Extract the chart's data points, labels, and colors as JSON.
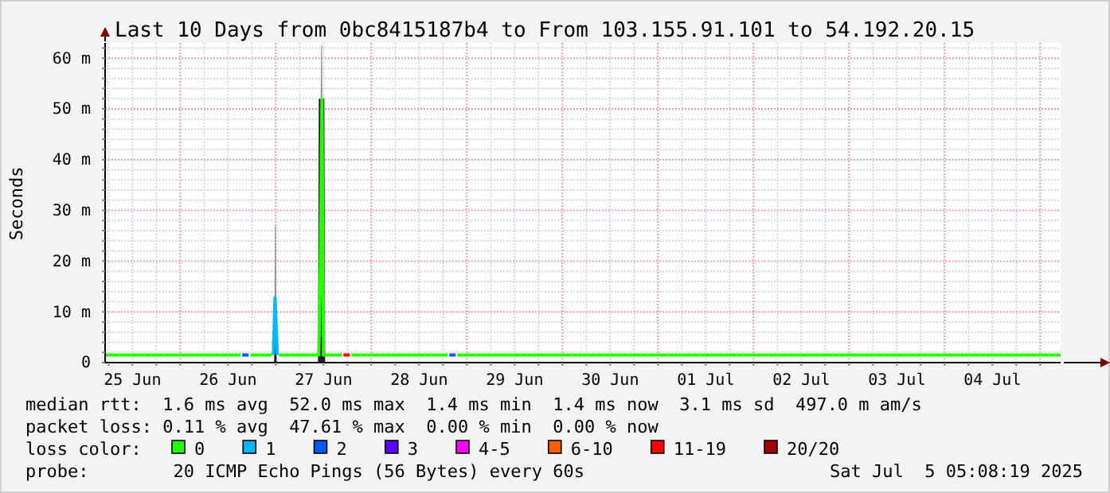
{
  "chart_data": {
    "type": "line",
    "title": "Last 10 Days from 0bc8415187b4 to From 103.155.91.101 to 54.192.20.15",
    "ylabel": "Seconds",
    "legend_title": "loss color:",
    "legend": "bottom",
    "grid": true,
    "xlim": [
      "2025-06-25T05:08",
      "2025-07-05T05:08"
    ],
    "xticks": [
      {
        "value": "2025-06-25T06:00",
        "label": null
      },
      {
        "value": "2025-06-25T12:00",
        "label": "25 Jun"
      },
      {
        "value": "2025-06-25T18:00",
        "label": null
      },
      {
        "value": "2025-06-26T00:00",
        "label": null
      },
      {
        "value": "2025-06-26T06:00",
        "label": null
      },
      {
        "value": "2025-06-26T12:00",
        "label": "26 Jun"
      },
      {
        "value": "2025-06-26T18:00",
        "label": null
      },
      {
        "value": "2025-06-27T00:00",
        "label": null
      },
      {
        "value": "2025-06-27T06:00",
        "label": null
      },
      {
        "value": "2025-06-27T12:00",
        "label": "27 Jun"
      },
      {
        "value": "2025-06-27T18:00",
        "label": null
      },
      {
        "value": "2025-06-28T00:00",
        "label": null
      },
      {
        "value": "2025-06-28T06:00",
        "label": null
      },
      {
        "value": "2025-06-28T12:00",
        "label": "28 Jun"
      },
      {
        "value": "2025-06-28T18:00",
        "label": null
      },
      {
        "value": "2025-06-29T00:00",
        "label": null
      },
      {
        "value": "2025-06-29T06:00",
        "label": null
      },
      {
        "value": "2025-06-29T12:00",
        "label": "29 Jun"
      },
      {
        "value": "2025-06-29T18:00",
        "label": null
      },
      {
        "value": "2025-06-30T00:00",
        "label": null
      },
      {
        "value": "2025-06-30T06:00",
        "label": null
      },
      {
        "value": "2025-06-30T12:00",
        "label": "30 Jun"
      },
      {
        "value": "2025-06-30T18:00",
        "label": null
      },
      {
        "value": "2025-07-01T00:00",
        "label": null
      },
      {
        "value": "2025-07-01T06:00",
        "label": null
      },
      {
        "value": "2025-07-01T12:00",
        "label": "01 Jul"
      },
      {
        "value": "2025-07-01T18:00",
        "label": null
      },
      {
        "value": "2025-07-02T00:00",
        "label": null
      },
      {
        "value": "2025-07-02T06:00",
        "label": null
      },
      {
        "value": "2025-07-02T12:00",
        "label": "02 Jul"
      },
      {
        "value": "2025-07-02T18:00",
        "label": null
      },
      {
        "value": "2025-07-03T00:00",
        "label": null
      },
      {
        "value": "2025-07-03T06:00",
        "label": null
      },
      {
        "value": "2025-07-03T12:00",
        "label": "03 Jul"
      },
      {
        "value": "2025-07-03T18:00",
        "label": null
      },
      {
        "value": "2025-07-04T00:00",
        "label": null
      },
      {
        "value": "2025-07-04T06:00",
        "label": null
      },
      {
        "value": "2025-07-04T12:00",
        "label": "04 Jul"
      },
      {
        "value": "2025-07-04T18:00",
        "label": null
      },
      {
        "value": "2025-07-05T00:00",
        "label": null
      }
    ],
    "ylim": [
      0,
      63
    ],
    "yticks": [
      0,
      {
        "value": 2,
        "label": null
      },
      {
        "value": 4,
        "label": null
      },
      {
        "value": 6,
        "label": null
      },
      {
        "value": 8,
        "label": null
      },
      {
        "value": 10,
        "label": "10 m"
      },
      {
        "value": 12,
        "label": null
      },
      {
        "value": 14,
        "label": null
      },
      {
        "value": 16,
        "label": null
      },
      {
        "value": 18,
        "label": null
      },
      {
        "value": 20,
        "label": "20 m"
      },
      {
        "value": 22,
        "label": null
      },
      {
        "value": 24,
        "label": null
      },
      {
        "value": 26,
        "label": null
      },
      {
        "value": 28,
        "label": null
      },
      {
        "value": 30,
        "label": "30 m"
      },
      {
        "value": 32,
        "label": null
      },
      {
        "value": 34,
        "label": null
      },
      {
        "value": 36,
        "label": null
      },
      {
        "value": 38,
        "label": null
      },
      {
        "value": 40,
        "label": "40 m"
      },
      {
        "value": 42,
        "label": null
      },
      {
        "value": 44,
        "label": null
      },
      {
        "value": 46,
        "label": null
      },
      {
        "value": 48,
        "label": null
      },
      {
        "value": 50,
        "label": "50 m"
      },
      {
        "value": 52,
        "label": null
      },
      {
        "value": 54,
        "label": null
      },
      {
        "value": 56,
        "label": null
      },
      {
        "value": 58,
        "label": null
      },
      {
        "value": 60,
        "label": "60 m"
      },
      {
        "value": 62,
        "label": null
      }
    ],
    "series": [
      {
        "type": "area",
        "color": "#8c8c8c",
        "x": [
          "2025-06-25T05:08",
          "2025-06-26T23:36",
          "2025-06-26T23:48",
          "2025-06-27T00:00",
          "2025-06-27T00:12",
          "2025-06-27T10:48",
          "2025-06-27T11:00",
          "2025-06-27T11:24",
          "2025-06-27T11:36",
          "2025-06-27T12:00",
          "2025-07-05T05:08"
        ],
        "values": [
          0,
          0,
          27,
          27,
          0,
          0,
          27,
          62.5,
          62.5,
          0,
          0
        ]
      },
      {
        "type": "area",
        "color": "#222222",
        "x": [
          "2025-06-25T05:08",
          "2025-06-26T23:36",
          "2025-06-26T23:48",
          "2025-06-27T00:00",
          "2025-06-27T00:12",
          "2025-06-27T10:36",
          "2025-06-27T10:48",
          "2025-06-27T12:12",
          "2025-06-27T12:24",
          "2025-07-05T05:08"
        ],
        "values": [
          0,
          0,
          13,
          13,
          0,
          0,
          52,
          52,
          0,
          0
        ]
      },
      {
        "name": "0",
        "color": "#26ff00",
        "x": [
          "2025-06-25T05:08",
          "2025-06-26T15:12",
          "2025-06-26T16:00",
          "2025-06-26T17:36",
          "2025-06-26T23:00",
          "2025-06-26T23:36",
          "2025-06-27T00:48",
          "2025-06-27T10:48",
          "2025-06-27T11:12",
          "2025-06-27T11:36",
          "2025-06-27T12:00",
          "2025-06-27T16:36",
          "2025-06-27T17:36",
          "2025-06-27T19:00",
          "2025-06-28T19:12",
          "2025-06-28T20:00",
          "2025-06-28T21:36",
          "2025-07-05T05:08"
        ],
        "values": [
          1.5,
          1.5,
          null,
          1.5,
          1.5,
          null,
          1.5,
          1.5,
          18,
          52,
          1.5,
          1.5,
          null,
          1.5,
          1.5,
          null,
          1.5,
          1.5
        ]
      },
      {
        "name": "1",
        "color": "#00b8ff",
        "x": [
          "2025-06-26T23:24",
          "2025-06-26T23:48",
          "2025-06-27T00:24"
        ],
        "values": [
          1.5,
          12.8,
          1.5
        ]
      },
      {
        "name": "2",
        "color": "#0059ff",
        "x": [
          "2025-06-26T15:36",
          "2025-06-26T17:12",
          "2025-06-26T18:00",
          "2025-06-28T19:36",
          "2025-06-28T21:12"
        ],
        "values": [
          1.5,
          1.5,
          null,
          1.5,
          1.5
        ]
      },
      {
        "name": "3",
        "color": "#5e00ff"
      },
      {
        "name": "4-5",
        "color": "#ff00ff"
      },
      {
        "name": "6-10",
        "color": "#ff5e00"
      },
      {
        "name": "11-19",
        "color": "#ff0000",
        "x": [
          "2025-06-27T17:00",
          "2025-06-27T18:36"
        ],
        "values": [
          1.5,
          1.5
        ]
      },
      {
        "name": "20/20",
        "color": "#a10000"
      }
    ],
    "annotations": [
      "median rtt:  1.6 ms avg  52.0 ms max  1.4 ms min  1.4 ms now  3.1 ms sd  497.0 m am/s",
      "packet loss: 0.11 % avg  47.61 % max  0.00 % min  0.00 % now",
      "probe:        20 ICMP Echo Pings (56 Bytes) every 60s",
      "Sat Jul  5 05:08:19 2025"
    ]
  }
}
